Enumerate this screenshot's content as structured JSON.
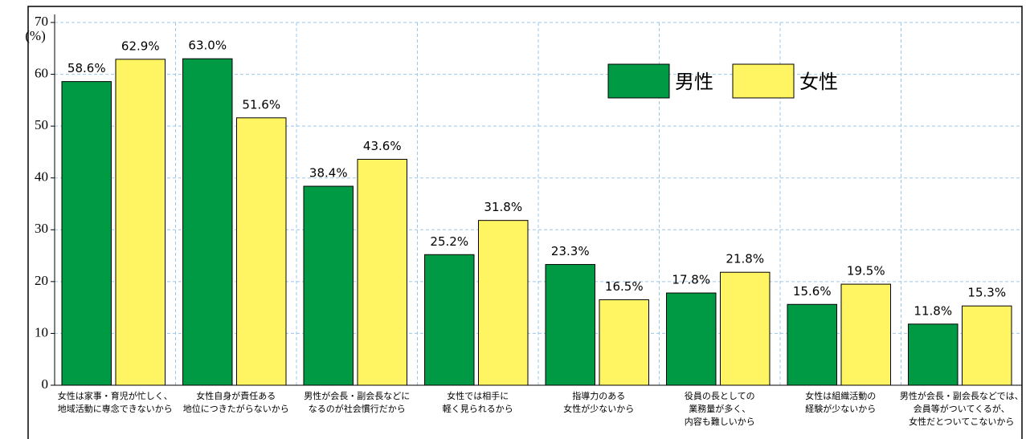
{
  "chart_data": {
    "type": "bar",
    "y_unit": "(%)",
    "categories": [
      [
        "女性は家事・育児が忙しく、",
        "地域活動に専念できないから"
      ],
      [
        "女性自身が責任ある",
        "地位につきたがらないから"
      ],
      [
        "男性が会長・副会長などに",
        "なるのが社会慣行だから"
      ],
      [
        "女性では相手に",
        "軽く見られるから"
      ],
      [
        "指導力のある",
        "女性が少ないから"
      ],
      [
        "役員の長としての",
        "業務量が多く、",
        "内容も難しいから"
      ],
      [
        "女性は組織活動の",
        "経験が少ないから"
      ],
      [
        "男性が会長・副会長などでは、",
        "会員等がついてくるが、",
        "女性だとついてこないから"
      ]
    ],
    "series": [
      {
        "name": "男性",
        "color": "#009944",
        "values": [
          58.6,
          63.0,
          38.4,
          25.2,
          23.3,
          17.8,
          15.6,
          11.8
        ],
        "value_labels": [
          "58.6%",
          "63.0%",
          "38.4%",
          "25.2%",
          "23.3%",
          "17.8%",
          "15.6%",
          "11.8%"
        ]
      },
      {
        "name": "女性",
        "color": "#fff462",
        "values": [
          62.9,
          51.6,
          43.6,
          31.8,
          16.5,
          21.8,
          19.5,
          15.3
        ],
        "value_labels": [
          "62.9%",
          "51.6%",
          "43.6%",
          "31.8%",
          "16.5%",
          "21.8%",
          "19.5%",
          "15.3%"
        ]
      }
    ],
    "ylim": [
      0,
      70
    ],
    "yticks": [
      0,
      10,
      20,
      30,
      40,
      50,
      60,
      70
    ],
    "grid": true,
    "legend": "upper right"
  }
}
